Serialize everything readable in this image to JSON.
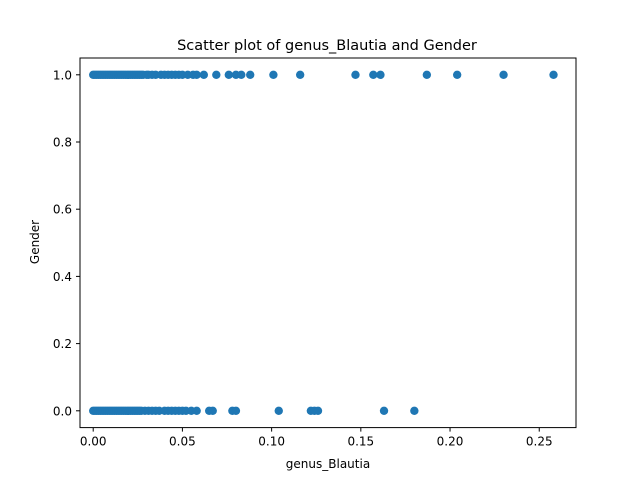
{
  "chart_data": {
    "type": "scatter",
    "title": "Scatter plot of genus_Blautia and Gender",
    "xlabel": "genus_Blautia",
    "ylabel": "Gender",
    "xlim": [
      -0.0074,
      0.2706
    ],
    "ylim": [
      -0.05,
      1.05
    ],
    "xticks": [
      0.0,
      0.05,
      0.1,
      0.15,
      0.2,
      0.25
    ],
    "xtick_labels": [
      "0.00",
      "0.05",
      "0.10",
      "0.15",
      "0.20",
      "0.25"
    ],
    "yticks": [
      0.0,
      0.2,
      0.4,
      0.6,
      0.8,
      1.0
    ],
    "ytick_labels": [
      "0.0",
      "0.2",
      "0.4",
      "0.6",
      "0.8",
      "1.0"
    ],
    "grid": false,
    "color": "#1f77b4",
    "series": [
      {
        "x": [
          0.0,
          0.001,
          0.002,
          0.003,
          0.004,
          0.005,
          0.006,
          0.007,
          0.008,
          0.009,
          0.01,
          0.011,
          0.012,
          0.013,
          0.014,
          0.015,
          0.016,
          0.017,
          0.018,
          0.019,
          0.02,
          0.021,
          0.022,
          0.023,
          0.024,
          0.025,
          0.026,
          0.027,
          0.028,
          0.03,
          0.031,
          0.033,
          0.035,
          0.038,
          0.04,
          0.042,
          0.044,
          0.046,
          0.048,
          0.05,
          0.053,
          0.056,
          0.058,
          0.062,
          0.069,
          0.076,
          0.08,
          0.083,
          0.088,
          0.101,
          0.116,
          0.147,
          0.157,
          0.161,
          0.187,
          0.204,
          0.23,
          0.258
        ],
        "y": [
          1,
          1,
          1,
          1,
          1,
          1,
          1,
          1,
          1,
          1,
          1,
          1,
          1,
          1,
          1,
          1,
          1,
          1,
          1,
          1,
          1,
          1,
          1,
          1,
          1,
          1,
          1,
          1,
          1,
          1,
          1,
          1,
          1,
          1,
          1,
          1,
          1,
          1,
          1,
          1,
          1,
          1,
          1,
          1,
          1,
          1,
          1,
          1,
          1,
          1,
          1,
          1,
          1,
          1,
          1,
          1,
          1,
          1
        ]
      },
      {
        "x": [
          0.0,
          0.001,
          0.002,
          0.003,
          0.004,
          0.005,
          0.006,
          0.007,
          0.008,
          0.009,
          0.01,
          0.011,
          0.012,
          0.013,
          0.014,
          0.015,
          0.016,
          0.017,
          0.018,
          0.019,
          0.02,
          0.021,
          0.022,
          0.023,
          0.024,
          0.025,
          0.026,
          0.027,
          0.029,
          0.031,
          0.033,
          0.035,
          0.037,
          0.04,
          0.042,
          0.044,
          0.046,
          0.048,
          0.05,
          0.052,
          0.055,
          0.058,
          0.065,
          0.067,
          0.078,
          0.08,
          0.104,
          0.122,
          0.124,
          0.126,
          0.163,
          0.18
        ],
        "y": [
          0,
          0,
          0,
          0,
          0,
          0,
          0,
          0,
          0,
          0,
          0,
          0,
          0,
          0,
          0,
          0,
          0,
          0,
          0,
          0,
          0,
          0,
          0,
          0,
          0,
          0,
          0,
          0,
          0,
          0,
          0,
          0,
          0,
          0,
          0,
          0,
          0,
          0,
          0,
          0,
          0,
          0,
          0,
          0,
          0,
          0,
          0,
          0,
          0,
          0,
          0,
          0
        ]
      }
    ]
  }
}
